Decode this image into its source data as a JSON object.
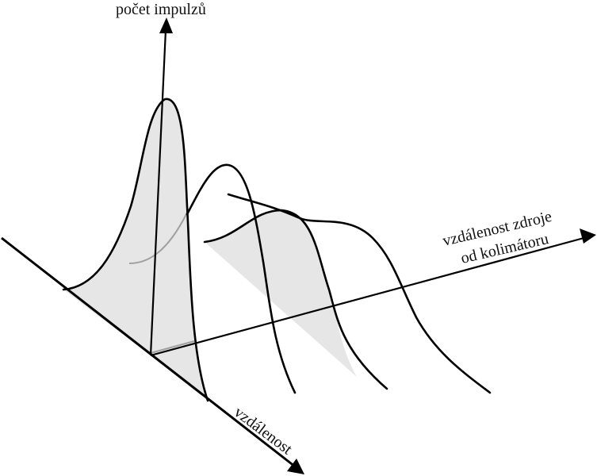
{
  "diagram": {
    "labels": {
      "vertical_axis": "počet impulzů",
      "depth_axis_line1": "vzdálenost zdroje",
      "depth_axis_line2": "od kolimátoru",
      "horizontal_axis": "vzdálenost"
    },
    "colors": {
      "stroke": "#000000",
      "shade": "#e6e6e6",
      "hidden_line": "#a0a0a0",
      "background": "#ffffff"
    }
  }
}
